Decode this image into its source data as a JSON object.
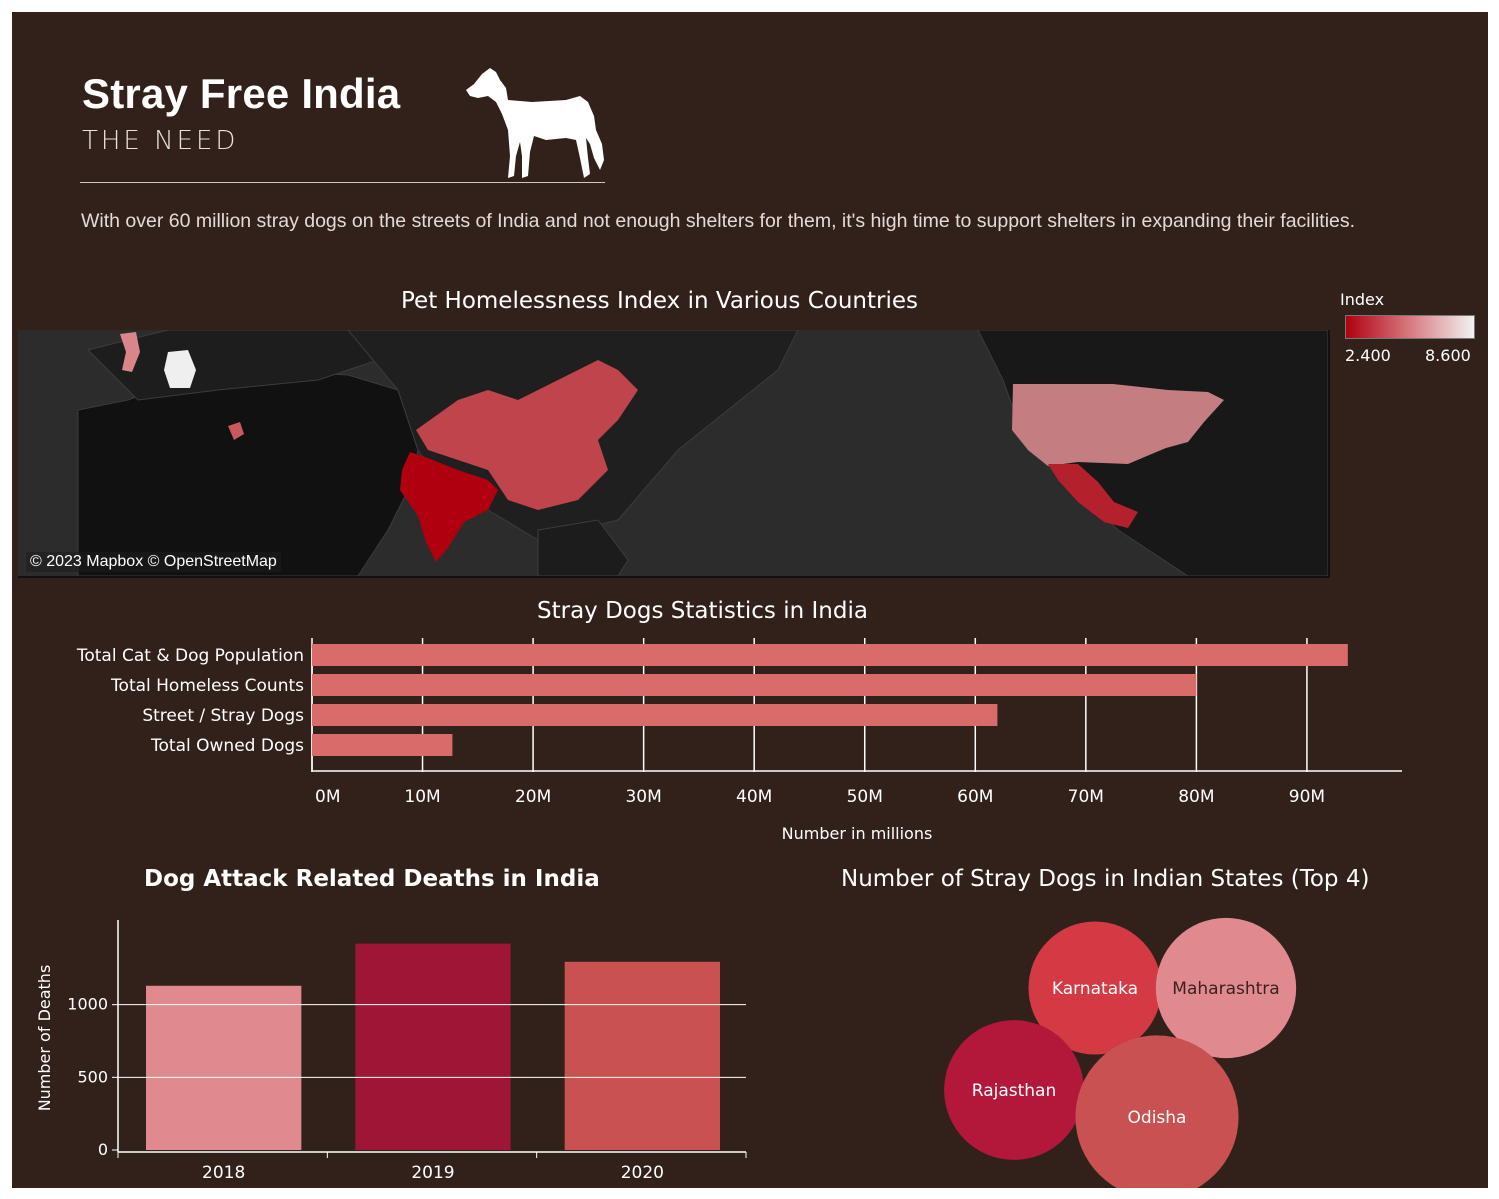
{
  "header": {
    "title": "Stray Free India",
    "subtitle": "THE NEED",
    "description": "With over 60 million stray dogs on the streets of India and not enough shelters for them, it's high time to support shelters in expanding their facilities."
  },
  "map_section": {
    "title": "Pet Homelessness Index in Various Countries",
    "credit": "© 2023 Mapbox © OpenStreetMap",
    "legend": {
      "title": "Index",
      "min_label": "2.400",
      "max_label": "8.600",
      "color_low": "#b00010",
      "color_high": "#f2f2f2"
    }
  },
  "colors": {
    "background": "#32211b",
    "bar_pink": "#d96b6b",
    "deaths_2018": "#e08a90",
    "deaths_2019": "#9e1535",
    "deaths_2020": "#c95151"
  },
  "chart_data": [
    {
      "type": "bar",
      "orientation": "horizontal",
      "title": "Stray Dogs Statistics in India",
      "xlabel": "Number in millions",
      "ylabel": "",
      "categories": [
        "Total Cat & Dog Population",
        "Total Homeless Counts",
        "Street / Stray Dogs",
        "Total Owned Dogs"
      ],
      "values": [
        93.7,
        80.0,
        62.0,
        12.7
      ],
      "tick_labels": [
        "0M",
        "10M",
        "20M",
        "30M",
        "40M",
        "50M",
        "60M",
        "70M",
        "80M",
        "90M"
      ],
      "xlim": [
        0,
        98.6
      ],
      "grid": true
    },
    {
      "type": "bar",
      "title": "Dog Attack Related Deaths in India",
      "xlabel": "",
      "ylabel": "Number of Deaths",
      "categories": [
        "2018",
        "2019",
        "2020"
      ],
      "values": [
        1130,
        1420,
        1295
      ],
      "tick_labels": [
        "0",
        "500",
        "1000"
      ],
      "ylim": [
        0,
        1500
      ],
      "grid": true
    },
    {
      "type": "bubble",
      "title": "Number of Stray Dogs in Indian States (Top 4)",
      "items": [
        {
          "label": "Karnataka",
          "value": 11.5,
          "color": "#d33a44"
        },
        {
          "label": "Maharashtra",
          "value": 12.8,
          "color": "#e08a90"
        },
        {
          "label": "Rajasthan",
          "value": 12.7,
          "color": "#b3183a"
        },
        {
          "label": "Odisha",
          "value": 17.3,
          "color": "#c95151"
        }
      ]
    }
  ]
}
